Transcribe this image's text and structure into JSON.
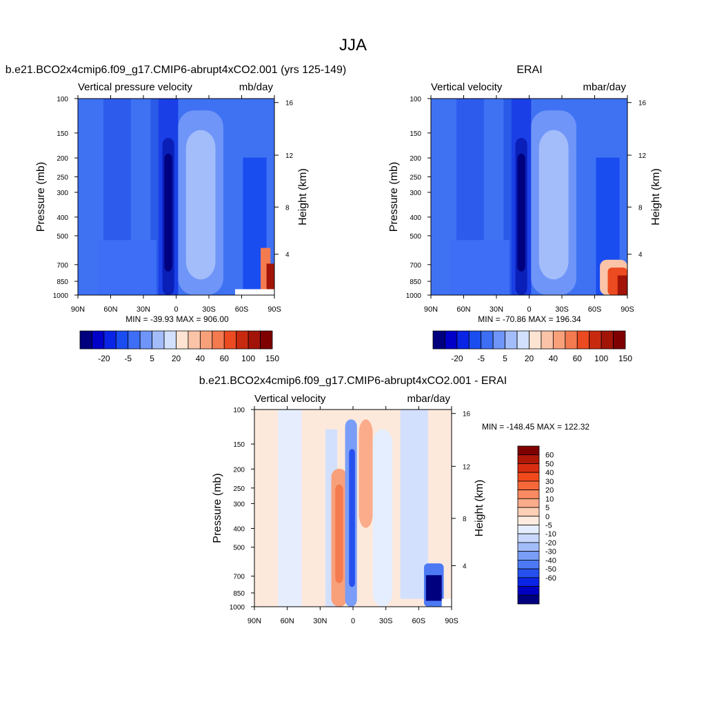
{
  "figure": {
    "title": "JJA"
  },
  "chart_data": [
    {
      "type": "heatmap",
      "title": "b.e21.BCO2x4cmip6.f09_g17.CMIP6-abrupt4xCO2.001 (yrs 125-149)",
      "subtitle_left": "Vertical pressure velocity",
      "subtitle_right": "mb/day",
      "ylabel": "Pressure (mb)",
      "ylabel_right": "Height (km)",
      "xticks": [
        "90N",
        "60N",
        "30N",
        "0",
        "30S",
        "60S",
        "90S"
      ],
      "yticks": [
        "100",
        "150",
        "200",
        "250",
        "300",
        "400",
        "500",
        "700",
        "850",
        "1000"
      ],
      "yticks_right": [
        "16",
        "12",
        "8",
        "4"
      ],
      "ylim": [
        1000,
        100
      ],
      "xlim": [
        90,
        -90
      ],
      "stats": "MIN = -39.93  MAX = 906.00",
      "colorbar": {
        "orientation": "horizontal",
        "labels": [
          "-20",
          "-5",
          "5",
          "20",
          "40",
          "60",
          "100",
          "150"
        ],
        "colors": [
          "#00007f",
          "#0000c8",
          "#0a24e6",
          "#1a4df0",
          "#3d6ef5",
          "#6f95f8",
          "#a3bdfb",
          "#d2e0fd",
          "#fde4d2",
          "#fbc4a8",
          "#f8a07a",
          "#f47a50",
          "#ec4a20",
          "#c82a10",
          "#a21408",
          "#7f0000"
        ]
      }
    },
    {
      "type": "heatmap",
      "title": "ERAI",
      "subtitle_left": "Vertical velocity",
      "subtitle_right": "mbar/day",
      "ylabel": "Pressure (mb)",
      "ylabel_right": "Height (km)",
      "xticks": [
        "90N",
        "60N",
        "30N",
        "0",
        "30S",
        "60S",
        "90S"
      ],
      "yticks": [
        "100",
        "150",
        "200",
        "250",
        "300",
        "400",
        "500",
        "700",
        "850",
        "1000"
      ],
      "yticks_right": [
        "16",
        "12",
        "8",
        "4"
      ],
      "ylim": [
        1000,
        100
      ],
      "xlim": [
        90,
        -90
      ],
      "stats": "MIN = -70.86  MAX = 196.34",
      "colorbar": {
        "orientation": "horizontal",
        "labels": [
          "-20",
          "-5",
          "5",
          "20",
          "40",
          "60",
          "100",
          "150"
        ],
        "colors": [
          "#00007f",
          "#0000c8",
          "#0a24e6",
          "#1a4df0",
          "#3d6ef5",
          "#6f95f8",
          "#a3bdfb",
          "#d2e0fd",
          "#fde4d2",
          "#fbc4a8",
          "#f8a07a",
          "#f47a50",
          "#ec4a20",
          "#c82a10",
          "#a21408",
          "#7f0000"
        ]
      }
    },
    {
      "type": "heatmap",
      "title": "b.e21.BCO2x4cmip6.f09_g17.CMIP6-abrupt4xCO2.001 - ERAI",
      "subtitle_left": "Vertical velocity",
      "subtitle_right": "mbar/day",
      "ylabel": "Pressure (mb)",
      "ylabel_right": "Height (km)",
      "xticks": [
        "90N",
        "60N",
        "30N",
        "0",
        "30S",
        "60S",
        "90S"
      ],
      "yticks": [
        "100",
        "150",
        "200",
        "250",
        "300",
        "400",
        "500",
        "700",
        "850",
        "1000"
      ],
      "yticks_right": [
        "16",
        "12",
        "8",
        "4"
      ],
      "ylim": [
        1000,
        100
      ],
      "xlim": [
        90,
        -90
      ],
      "stats": "MIN = -148.45  MAX = 122.32",
      "colorbar": {
        "orientation": "vertical",
        "labels": [
          "60",
          "50",
          "40",
          "30",
          "20",
          "10",
          "5",
          "0",
          "-5",
          "-10",
          "-20",
          "-30",
          "-40",
          "-50",
          "-60"
        ],
        "colors": [
          "#7f0000",
          "#b01808",
          "#d82c10",
          "#f04a1c",
          "#f6683a",
          "#f98a62",
          "#fbac8a",
          "#fdcfb4",
          "#fdebdf",
          "#e5eefe",
          "#c8d8fc",
          "#a3bdfb",
          "#7a9df8",
          "#4d7af4",
          "#2650ee",
          "#0a24e6",
          "#0000c0",
          "#00007f"
        ]
      }
    }
  ]
}
